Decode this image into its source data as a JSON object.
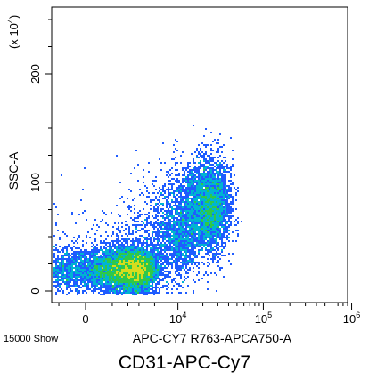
{
  "chart_data": {
    "type": "scatter",
    "subtype": "flow-cytometry-density-dot-plot",
    "title": "CD31-APC-Cy7",
    "xlabel": "APC-CY7 R763-APCA750-A",
    "ylabel": "SSC-A",
    "y_multiplier_label": "(x 10",
    "y_multiplier_exp": "4",
    "y_multiplier_close": ")",
    "event_count_label": "15000 Show",
    "x_scale": "biexponential",
    "x_ticks": [
      {
        "base": "0",
        "exp": "",
        "value": 0
      },
      {
        "base": "10",
        "exp": "4",
        "value": 10000
      },
      {
        "base": "10",
        "exp": "5",
        "value": 100000
      },
      {
        "base": "10",
        "exp": "6",
        "value": 1000000
      }
    ],
    "y_ticks": [
      0,
      100,
      200
    ],
    "ylim": [
      -5,
      260
    ],
    "grid": false,
    "legend": "none",
    "colormap": [
      "#0000dd",
      "#1f5cff",
      "#00b4d2",
      "#2ec84a",
      "#d6dc1e"
    ],
    "populations": [
      {
        "name": "",
        "center_x": 1800,
        "center_y": 20,
        "spread_x": 1600,
        "spread_y": 10,
        "events": 7800
      },
      {
        "name": "",
        "center_x": 22000,
        "center_y": 78,
        "spread_x": 9000,
        "spread_y": 22,
        "events": 4200
      },
      {
        "name": "",
        "center_x": 8000,
        "center_y": 45,
        "spread_x": 5000,
        "spread_y": 18,
        "events": 1500
      }
    ]
  }
}
